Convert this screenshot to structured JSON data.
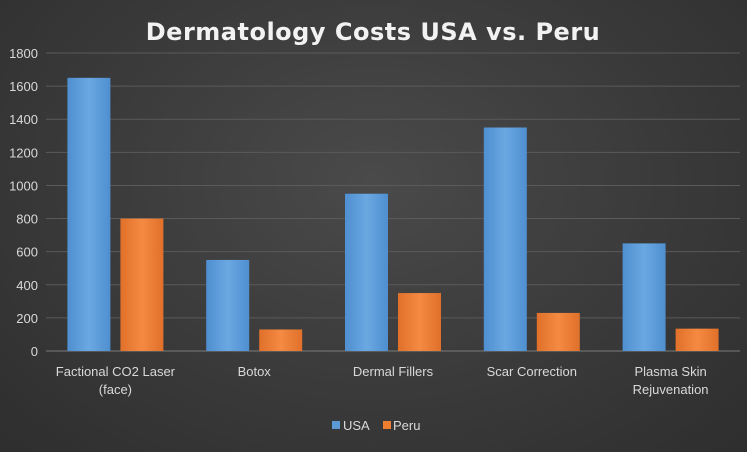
{
  "chart_data": {
    "type": "bar",
    "title": "Dermatology Costs USA vs. Peru",
    "categories": [
      [
        "Factional CO2 Laser",
        "(face)"
      ],
      [
        "Botox"
      ],
      [
        "Dermal Fillers"
      ],
      [
        "Scar Correction"
      ],
      [
        "Plasma Skin",
        "Rejuvenation"
      ]
    ],
    "series": [
      {
        "name": "USA",
        "color": "#5b9bd5",
        "values": [
          1650,
          550,
          950,
          1350,
          650
        ]
      },
      {
        "name": "Peru",
        "color": "#ed7d31",
        "values": [
          800,
          130,
          350,
          230,
          135
        ]
      }
    ],
    "ylim": [
      0,
      1800
    ],
    "yticks": [
      0,
      200,
      400,
      600,
      800,
      1000,
      1200,
      1400,
      1600,
      1800
    ],
    "grid": true,
    "legend": "bottom"
  }
}
